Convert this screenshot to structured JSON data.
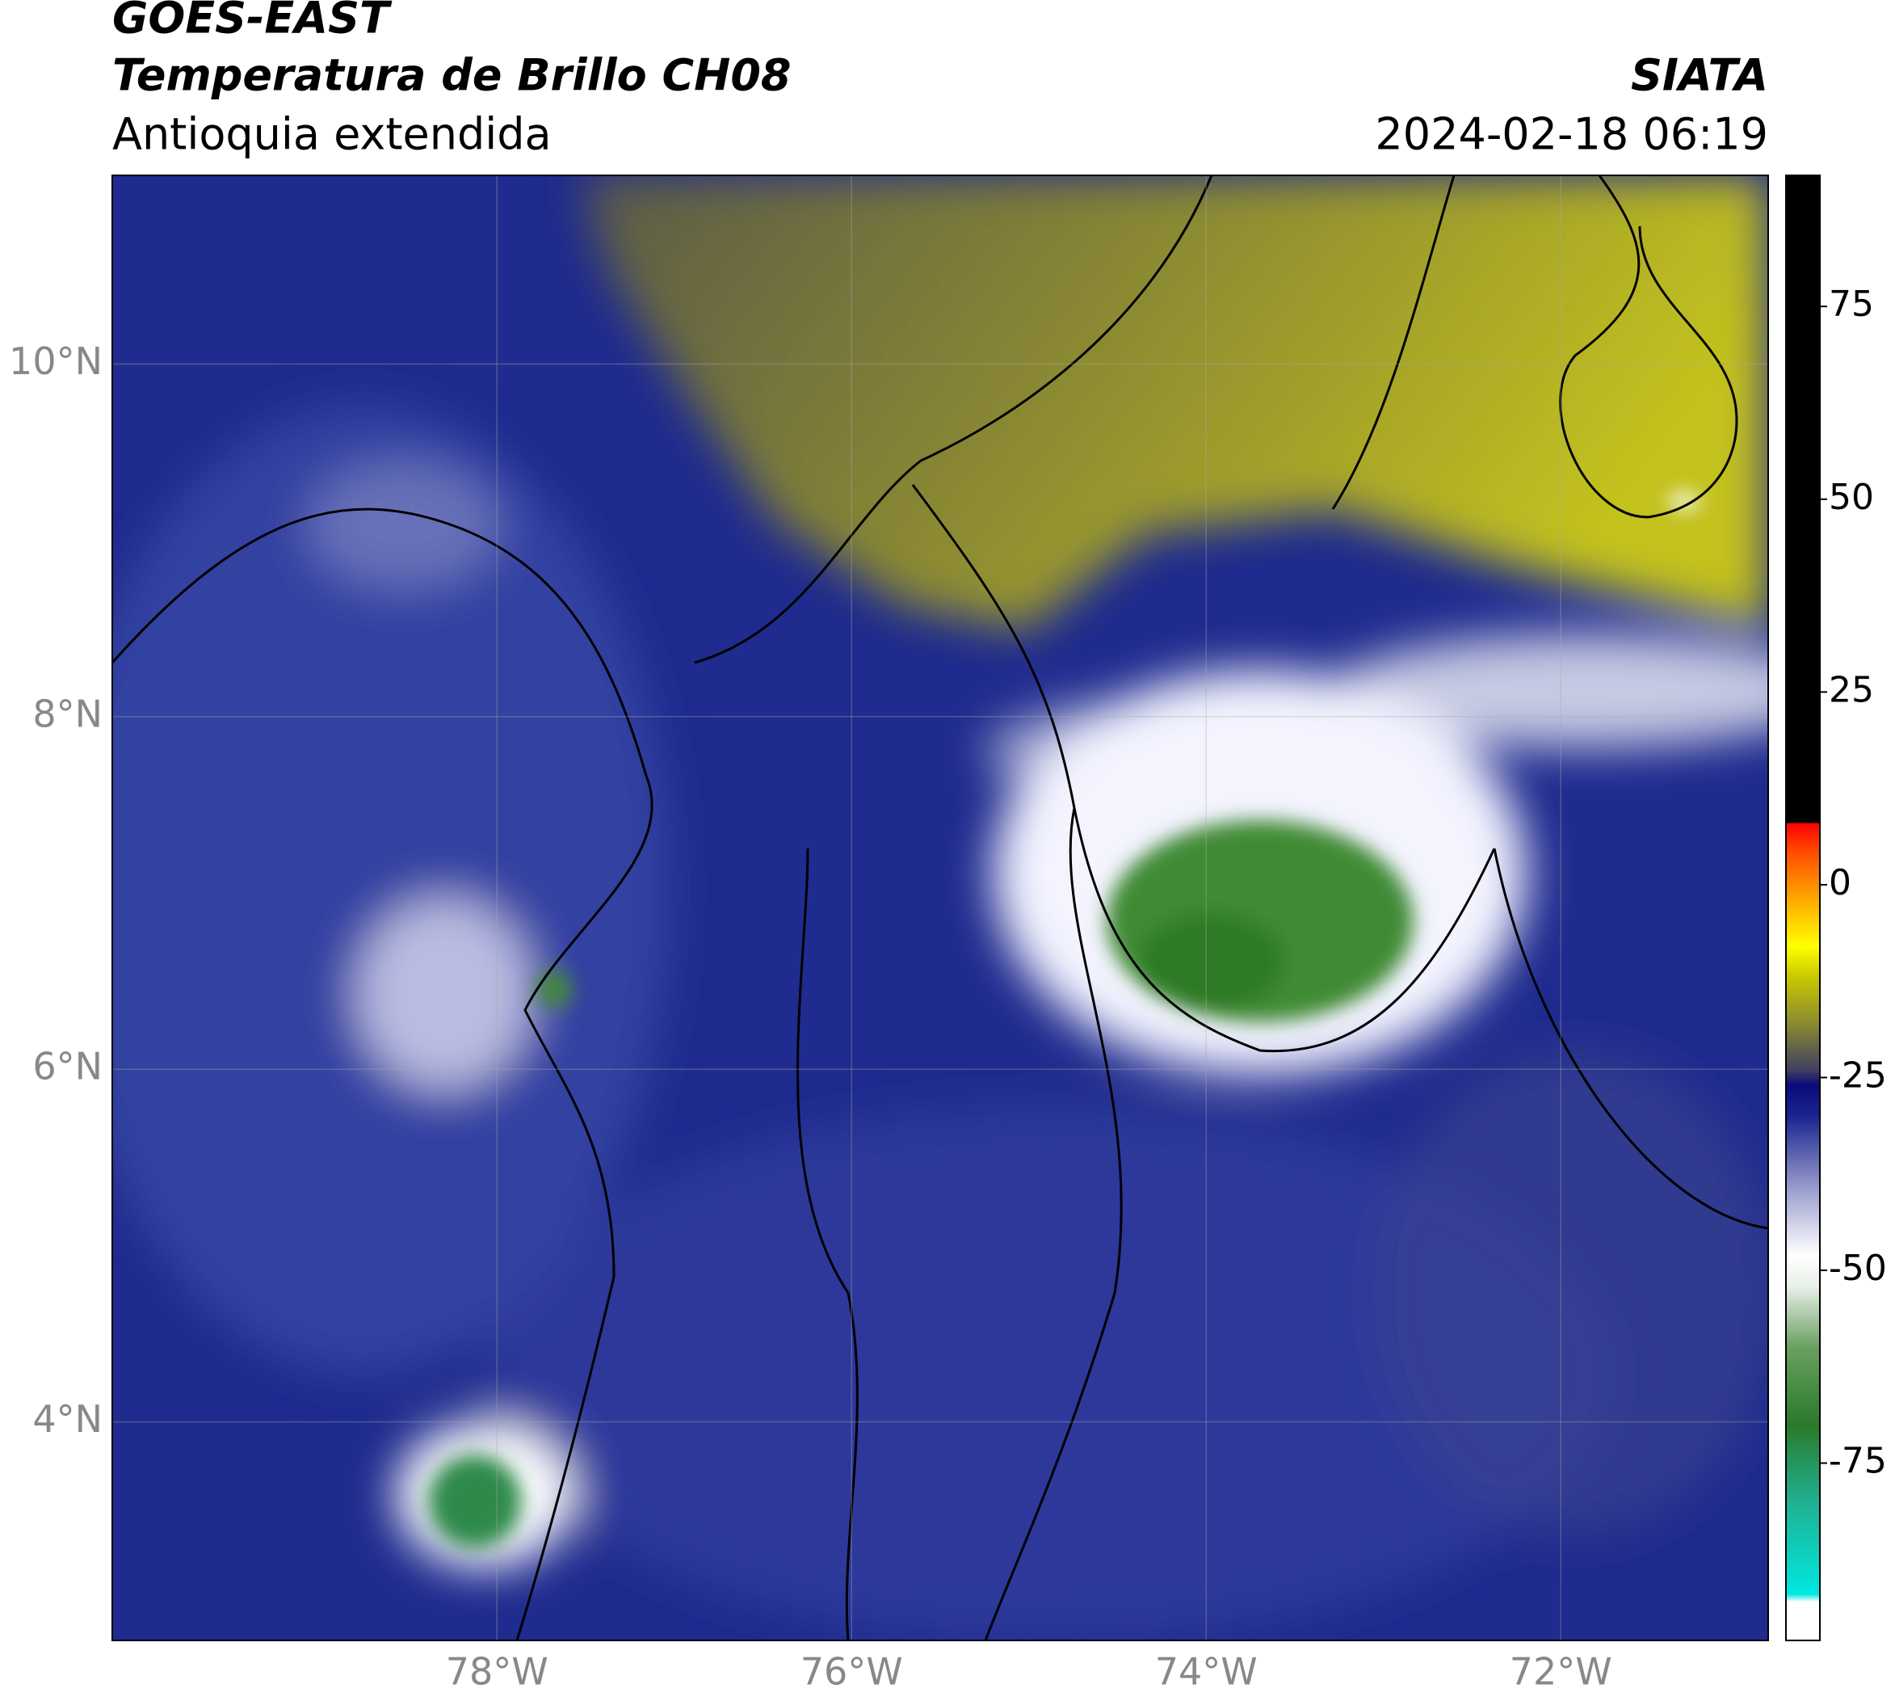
{
  "header": {
    "title": "GOES-EAST",
    "subtitle": "Temperatura de Brillo CH08",
    "region": "Antioquia extendida",
    "source": "SIATA",
    "datetime": "2024-02-18 06:19"
  },
  "map": {
    "type": "map",
    "xlim": [
      -80.17,
      -70.83
    ],
    "ylim": [
      2.76,
      11.07
    ],
    "xticks": [
      {
        "value": -78,
        "label": "78°W"
      },
      {
        "value": -76,
        "label": "76°W"
      },
      {
        "value": -74,
        "label": "74°W"
      },
      {
        "value": -72,
        "label": "72°W"
      }
    ],
    "yticks": [
      {
        "value": 4,
        "label": "4°N"
      },
      {
        "value": 6,
        "label": "6°N"
      },
      {
        "value": 8,
        "label": "8°N"
      },
      {
        "value": 10,
        "label": "10°N"
      }
    ],
    "grid": true
  },
  "colorbar": {
    "lim": [
      -98,
      92
    ],
    "ticks": [
      -75,
      -50,
      -25,
      0,
      25,
      50,
      75
    ],
    "stops": [
      {
        "value": -98,
        "color": "#ffffff"
      },
      {
        "value": -93,
        "color": "#ffffff"
      },
      {
        "value": -92,
        "color": "#00e8e0"
      },
      {
        "value": -80,
        "color": "#20b090"
      },
      {
        "value": -70,
        "color": "#2a7a2a"
      },
      {
        "value": -60,
        "color": "#6aa060"
      },
      {
        "value": -52,
        "color": "#eaf0ea"
      },
      {
        "value": -48,
        "color": "#ffffff"
      },
      {
        "value": -40,
        "color": "#a0a4d0"
      },
      {
        "value": -30,
        "color": "#1a2490"
      },
      {
        "value": -26,
        "color": "#0a0a7a"
      },
      {
        "value": -24,
        "color": "#404060"
      },
      {
        "value": -18,
        "color": "#8a8a30"
      },
      {
        "value": -12,
        "color": "#c8c800"
      },
      {
        "value": -8,
        "color": "#ffff00"
      },
      {
        "value": -2,
        "color": "#ffaa00"
      },
      {
        "value": 4,
        "color": "#ff5000"
      },
      {
        "value": 8,
        "color": "#ff0000"
      },
      {
        "value": 8,
        "color": "#000000"
      },
      {
        "value": 92,
        "color": "#000000"
      }
    ]
  }
}
